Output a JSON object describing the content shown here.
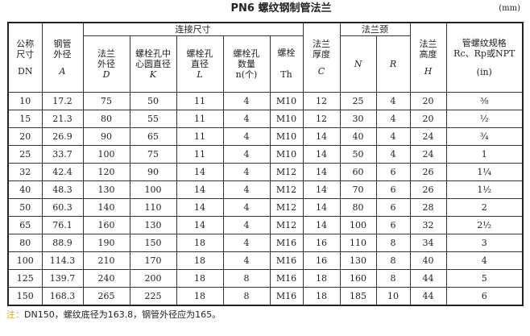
{
  "title": "PN6 螺纹钢制管法兰",
  "unit": "(mm)",
  "headers": {
    "dn": "公称尺寸",
    "dn_sym": "DN",
    "a": "钢管外径",
    "a_sym": "A",
    "conn": "连接尺寸",
    "d": "法兰外径",
    "d_sym": "D",
    "k": "螺栓孔中心圆直径",
    "k_sym": "K",
    "l": "螺栓孔直径",
    "l_sym": "L",
    "n": "螺栓孔数量",
    "n_sym": "n(个)",
    "th": "螺栓",
    "th_sym": "Th",
    "c": "法兰厚度",
    "c_sym": "C",
    "neck": "法兰颈",
    "nn_sym": "N",
    "r_sym": "R",
    "h": "法兰高度",
    "h_sym": "H",
    "thread": "管螺纹规格 Rc、Rp或NPT",
    "thread_sym": "(in)"
  },
  "rows": [
    [
      "10",
      "17.2",
      "75",
      "50",
      "11",
      "4",
      "M10",
      "12",
      "25",
      "4",
      "20",
      "⅜"
    ],
    [
      "15",
      "21.3",
      "80",
      "55",
      "11",
      "4",
      "M10",
      "12",
      "30",
      "4",
      "20",
      "½"
    ],
    [
      "20",
      "26.9",
      "90",
      "65",
      "11",
      "4",
      "M10",
      "14",
      "40",
      "4",
      "24",
      "¾"
    ],
    [
      "25",
      "33.7",
      "100",
      "75",
      "11",
      "4",
      "M10",
      "14",
      "50",
      "4",
      "24",
      "1"
    ],
    [
      "32",
      "42.4",
      "120",
      "90",
      "14",
      "4",
      "M12",
      "14",
      "60",
      "6",
      "26",
      "1¼"
    ],
    [
      "40",
      "48.3",
      "130",
      "100",
      "14",
      "4",
      "M12",
      "14",
      "70",
      "6",
      "26",
      "1½"
    ],
    [
      "50",
      "60.3",
      "140",
      "110",
      "14",
      "4",
      "M12",
      "14",
      "80",
      "6",
      "28",
      "2"
    ],
    [
      "65",
      "76.1",
      "160",
      "130",
      "14",
      "4",
      "M12",
      "14",
      "100",
      "6",
      "32",
      "2½"
    ],
    [
      "80",
      "88.9",
      "190",
      "150",
      "18",
      "4",
      "M16",
      "16",
      "110",
      "8",
      "34",
      "3"
    ],
    [
      "100",
      "114.3",
      "210",
      "170",
      "18",
      "4",
      "M16",
      "16",
      "130",
      "8",
      "40",
      "4"
    ],
    [
      "125",
      "139.7",
      "240",
      "200",
      "18",
      "8",
      "M16",
      "18",
      "160",
      "8",
      "44",
      "5"
    ],
    [
      "150",
      "168.3",
      "265",
      "225",
      "18",
      "8",
      "M16",
      "18",
      "185",
      "10",
      "44",
      "6"
    ]
  ],
  "note": {
    "label": "注：",
    "text": "DN150，螺纹底径为163.8，钢管外径应为165。"
  }
}
